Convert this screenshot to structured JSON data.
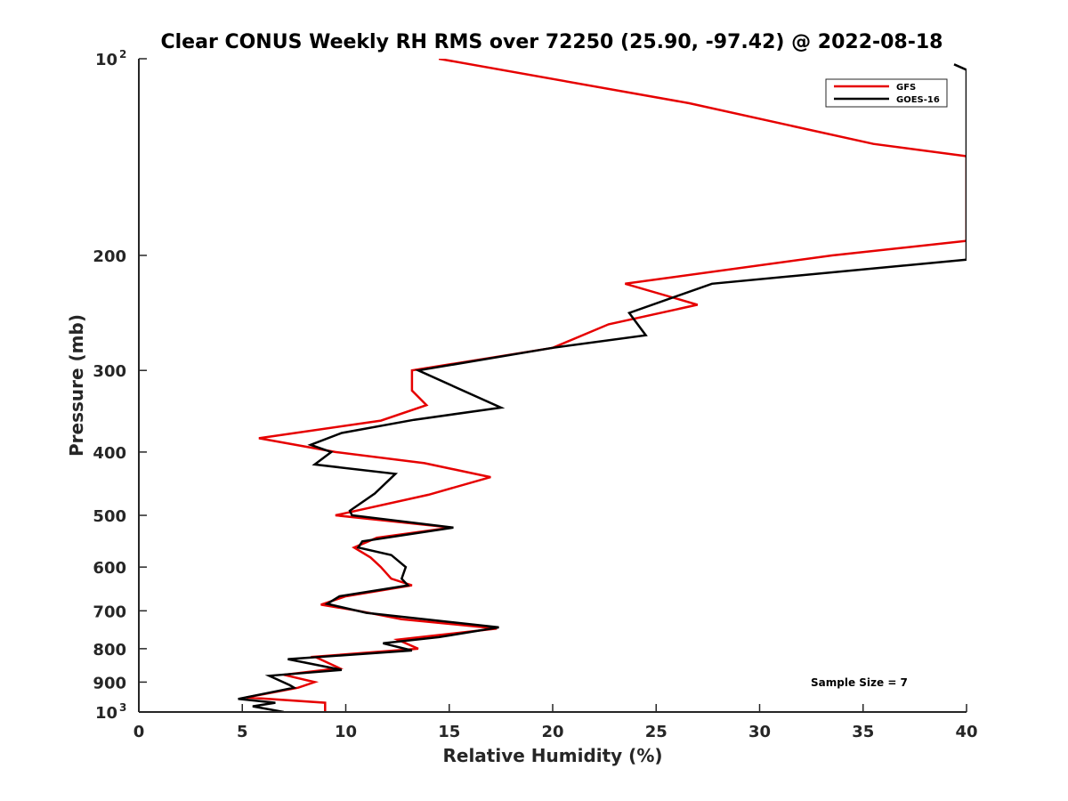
{
  "chart_data": {
    "type": "line",
    "title": "Clear CONUS Weekly RH RMS over 72250 (25.90, -97.42) @ 2022-08-18",
    "xlabel": "Relative Humidity (%)",
    "ylabel": "Pressure (mb)",
    "xlim": [
      0,
      40
    ],
    "ylim": [
      100,
      1000
    ],
    "yscale": "log",
    "y_reversed": true,
    "grid": false,
    "legend_placement": "top-right",
    "x_ticks": [
      "0",
      "5",
      "10",
      "15",
      "20",
      "25",
      "30",
      "35",
      "40"
    ],
    "y_ticks": [
      {
        "value": 100,
        "base": "10",
        "exp": "2"
      },
      {
        "value": 200,
        "label": "200"
      },
      {
        "value": 300,
        "label": "300"
      },
      {
        "value": 400,
        "label": "400"
      },
      {
        "value": 500,
        "label": "500"
      },
      {
        "value": 600,
        "label": "600"
      },
      {
        "value": 700,
        "label": "700"
      },
      {
        "value": 800,
        "label": "800"
      },
      {
        "value": 900,
        "label": "900"
      },
      {
        "value": 1000,
        "base": "10",
        "exp": "3"
      }
    ],
    "annotation": "Sample Size = 7",
    "series": [
      {
        "name": "GFS",
        "color": "#e60000",
        "points": [
          [
            14.5,
            100
          ],
          [
            26.6,
            117
          ],
          [
            35.5,
            135
          ],
          [
            40.0,
            141
          ],
          [
            40.0,
            190
          ],
          [
            33.5,
            200
          ],
          [
            23.5,
            221
          ],
          [
            27.0,
            238
          ],
          [
            22.7,
            255
          ],
          [
            20.0,
            277
          ],
          [
            13.2,
            300
          ],
          [
            13.2,
            322
          ],
          [
            13.9,
            339
          ],
          [
            11.7,
            358
          ],
          [
            5.8,
            381
          ],
          [
            9.5,
            400
          ],
          [
            13.8,
            416
          ],
          [
            17.0,
            437
          ],
          [
            14.0,
            465
          ],
          [
            9.5,
            500
          ],
          [
            15.1,
            522
          ],
          [
            11.5,
            541
          ],
          [
            10.4,
            560
          ],
          [
            11.2,
            580
          ],
          [
            11.7,
            600
          ],
          [
            12.2,
            625
          ],
          [
            13.2,
            640
          ],
          [
            10.0,
            665
          ],
          [
            8.8,
            685
          ],
          [
            10.6,
            700
          ],
          [
            12.7,
            721
          ],
          [
            17.3,
            745
          ],
          [
            12.5,
            775
          ],
          [
            13.5,
            800
          ],
          [
            8.5,
            823
          ],
          [
            9.7,
            857
          ],
          [
            7.0,
            877
          ],
          [
            8.5,
            900
          ],
          [
            7.7,
            918
          ],
          [
            5.2,
            950
          ],
          [
            9.0,
            968
          ],
          [
            9.0,
            1000
          ]
        ]
      },
      {
        "name": "GOES-16",
        "color": "#000000",
        "points": [
          [
            39.4,
            102
          ],
          [
            40.0,
            104
          ],
          [
            40.0,
            203
          ],
          [
            27.7,
            221
          ],
          [
            23.7,
            245
          ],
          [
            24.5,
            265
          ],
          [
            20.0,
            277
          ],
          [
            13.5,
            300
          ],
          [
            17.5,
            342
          ],
          [
            13.3,
            357
          ],
          [
            9.8,
            374
          ],
          [
            8.3,
            390
          ],
          [
            9.3,
            400
          ],
          [
            8.5,
            418
          ],
          [
            12.4,
            432
          ],
          [
            11.4,
            463
          ],
          [
            10.2,
            492
          ],
          [
            10.3,
            500
          ],
          [
            15.2,
            522
          ],
          [
            10.8,
            548
          ],
          [
            10.6,
            560
          ],
          [
            12.2,
            575
          ],
          [
            12.9,
            600
          ],
          [
            12.7,
            625
          ],
          [
            13.0,
            640
          ],
          [
            9.7,
            665
          ],
          [
            9.1,
            683
          ],
          [
            11.0,
            705
          ],
          [
            17.4,
            742
          ],
          [
            14.5,
            768
          ],
          [
            11.8,
            785
          ],
          [
            13.2,
            805
          ],
          [
            7.2,
            830
          ],
          [
            9.8,
            862
          ],
          [
            6.3,
            880
          ],
          [
            7.3,
            910
          ],
          [
            7.5,
            918
          ],
          [
            4.8,
            955
          ],
          [
            6.6,
            968
          ],
          [
            5.5,
            980
          ],
          [
            7.0,
            1000
          ]
        ]
      }
    ]
  }
}
